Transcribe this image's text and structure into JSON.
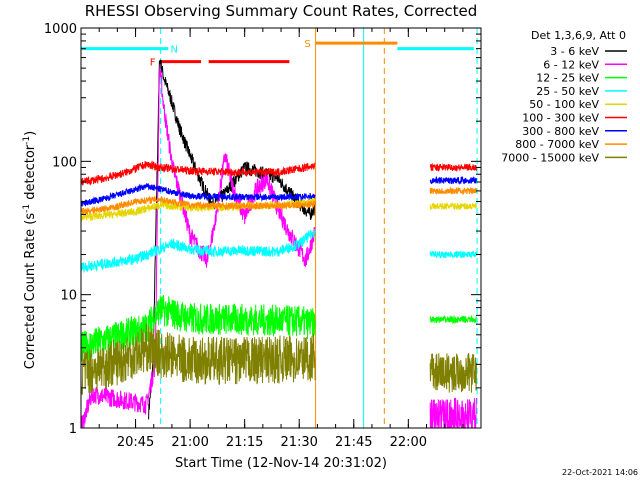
{
  "chart_data": {
    "type": "line",
    "title": "RHESSI Observing Summary Count Rates, Corrected",
    "xlabel": "Start Time (12-Nov-14 20:31:02)",
    "ylabel_main": "Corrected Count Rate (s",
    "ylabel_sup1": "-1",
    "ylabel_mid": " detector",
    "ylabel_sup2": "-1",
    "ylabel_end": ")",
    "yscale": "log",
    "ylim": [
      1,
      1000
    ],
    "xlim_min": [
      20.5,
      22.333
    ],
    "x_ticks": [
      {
        "v": 20.75,
        "label": "20:45"
      },
      {
        "v": 21.0,
        "label": "21:00"
      },
      {
        "v": 21.25,
        "label": "21:15"
      },
      {
        "v": 21.5,
        "label": "21:30"
      },
      {
        "v": 21.75,
        "label": "21:45"
      },
      {
        "v": 22.0,
        "label": "22:00"
      }
    ],
    "y_ticks": [
      {
        "v": 1,
        "label": "1"
      },
      {
        "v": 10,
        "label": "10"
      },
      {
        "v": 100,
        "label": "100"
      },
      {
        "v": 1000,
        "label": "1000"
      }
    ],
    "legend_header": "Det 1,3,6,9, Att 0",
    "legend_position": "right",
    "footer_date": "22-Oct-2021 14:06",
    "grid": false,
    "gaps": [
      [
        21.573,
        22.1
      ]
    ],
    "series": [
      {
        "name": "3 - 6 keV",
        "color": "#000000",
        "noise": 0.05,
        "points": [
          [
            20.81,
            1.3
          ],
          [
            20.83,
            3.0
          ],
          [
            20.86,
            600
          ],
          [
            20.88,
            420
          ],
          [
            20.91,
            300
          ],
          [
            20.95,
            180
          ],
          [
            21.0,
            110
          ],
          [
            21.05,
            70
          ],
          [
            21.1,
            48
          ],
          [
            21.15,
            55
          ],
          [
            21.2,
            70
          ],
          [
            21.25,
            90
          ],
          [
            21.3,
            85
          ],
          [
            21.35,
            80
          ],
          [
            21.4,
            75
          ],
          [
            21.45,
            60
          ],
          [
            21.5,
            48
          ],
          [
            21.55,
            40
          ],
          [
            21.573,
            45
          ]
        ]
      },
      {
        "name": "6 - 12 keV",
        "color": "#ff00ff",
        "noise": 0.07,
        "points": [
          [
            20.5,
            1.0
          ],
          [
            20.55,
            1.8
          ],
          [
            20.8,
            1.5
          ],
          [
            20.84,
            3.0
          ],
          [
            20.86,
            520
          ],
          [
            20.88,
            250
          ],
          [
            20.92,
            90
          ],
          [
            20.97,
            45
          ],
          [
            21.0,
            28
          ],
          [
            21.04,
            22
          ],
          [
            21.08,
            18
          ],
          [
            21.12,
            40
          ],
          [
            21.16,
            110
          ],
          [
            21.2,
            60
          ],
          [
            21.25,
            38
          ],
          [
            21.3,
            60
          ],
          [
            21.35,
            75
          ],
          [
            21.4,
            45
          ],
          [
            21.45,
            30
          ],
          [
            21.5,
            22
          ],
          [
            21.53,
            18
          ],
          [
            21.573,
            30
          ]
        ]
      },
      {
        "name": "12 - 25 keV",
        "color": "#00ff00",
        "noise": 0.12,
        "points": [
          [
            20.5,
            4.0
          ],
          [
            20.6,
            4.5
          ],
          [
            20.7,
            5.0
          ],
          [
            20.8,
            5.6
          ],
          [
            20.86,
            7.8
          ],
          [
            21.0,
            6.6
          ],
          [
            21.25,
            6.5
          ],
          [
            21.5,
            6.3
          ],
          [
            21.573,
            6.0
          ]
        ]
      },
      {
        "name": "25 - 50 keV",
        "color": "#00ffff",
        "noise": 0.04,
        "points": [
          [
            20.5,
            16
          ],
          [
            20.6,
            17
          ],
          [
            20.75,
            18.5
          ],
          [
            20.86,
            22
          ],
          [
            20.92,
            24
          ],
          [
            21.0,
            22
          ],
          [
            21.1,
            21
          ],
          [
            21.25,
            21.5
          ],
          [
            21.4,
            21
          ],
          [
            21.5,
            24
          ],
          [
            21.573,
            30
          ]
        ]
      },
      {
        "name": "50 - 100 keV",
        "color": "#e6d600",
        "noise": 0.03,
        "points": [
          [
            20.5,
            38
          ],
          [
            20.65,
            40
          ],
          [
            20.75,
            42
          ],
          [
            20.86,
            47
          ],
          [
            21.0,
            45
          ],
          [
            21.25,
            46
          ],
          [
            21.5,
            48
          ],
          [
            21.573,
            50
          ]
        ]
      },
      {
        "name": "100 - 300 keV",
        "color": "#ff0000",
        "noise": 0.03,
        "points": [
          [
            20.5,
            70
          ],
          [
            20.6,
            74
          ],
          [
            20.7,
            82
          ],
          [
            20.8,
            95
          ],
          [
            20.86,
            90
          ],
          [
            21.0,
            85
          ],
          [
            21.2,
            83
          ],
          [
            21.4,
            83
          ],
          [
            21.5,
            88
          ],
          [
            21.573,
            93
          ]
        ]
      },
      {
        "name": "300 - 800 keV",
        "color": "#0000ff",
        "noise": 0.025,
        "points": [
          [
            20.5,
            48
          ],
          [
            20.6,
            52
          ],
          [
            20.7,
            58
          ],
          [
            20.8,
            65
          ],
          [
            20.86,
            62
          ],
          [
            21.0,
            55
          ],
          [
            21.25,
            54
          ],
          [
            21.5,
            54
          ],
          [
            21.573,
            55
          ]
        ]
      },
      {
        "name": "800 - 7000 keV",
        "color": "#ff8c00",
        "noise": 0.025,
        "points": [
          [
            20.5,
            42
          ],
          [
            20.65,
            45
          ],
          [
            20.75,
            50
          ],
          [
            20.86,
            52
          ],
          [
            21.0,
            47
          ],
          [
            21.25,
            46
          ],
          [
            21.5,
            47
          ],
          [
            21.573,
            48
          ]
        ]
      },
      {
        "name": "7000 - 15000 keV",
        "color": "#808000",
        "noise": 0.18,
        "points": [
          [
            20.5,
            2.6
          ],
          [
            20.6,
            2.9
          ],
          [
            20.7,
            3.3
          ],
          [
            20.8,
            4.0
          ],
          [
            20.86,
            3.6
          ],
          [
            21.0,
            3.2
          ],
          [
            21.25,
            3.2
          ],
          [
            21.5,
            3.3
          ],
          [
            21.573,
            3.4
          ]
        ]
      }
    ],
    "after_gap": [
      {
        "color": "#ff0000",
        "value": 90
      },
      {
        "color": "#ff8c00",
        "value": 60
      },
      {
        "color": "#0000ff",
        "value": 72
      },
      {
        "color": "#e6d600",
        "value": 46
      },
      {
        "color": "#00ffff",
        "value": 20
      },
      {
        "color": "#00ff00",
        "value": 6.5
      },
      {
        "color": "#808000",
        "value": 2.6
      },
      {
        "color": "#ff00ff",
        "value": 1.2
      }
    ],
    "flags": [
      {
        "label": "N",
        "color": "#00ffff",
        "value": 700,
        "spans": [
          [
            20.5,
            20.9
          ],
          [
            21.95,
            22.3
          ]
        ]
      },
      {
        "label": "F",
        "color": "#ff0000",
        "value": 560,
        "spans": [
          [
            20.865,
            21.05
          ],
          [
            21.085,
            21.455
          ]
        ]
      },
      {
        "label": "S",
        "color": "#ff8c00",
        "value": 770,
        "spans": [
          [
            21.575,
            21.95
          ]
        ]
      }
    ],
    "vlines": [
      {
        "x": 20.5,
        "color": "#00ffff",
        "dash": false
      },
      {
        "x": 20.865,
        "color": "#00ffff",
        "dash": true
      },
      {
        "x": 21.575,
        "color": "#ff8c00",
        "dash": false
      },
      {
        "x": 21.795,
        "color": "#00ffff",
        "dash": false
      },
      {
        "x": 21.89,
        "color": "#ff8c00",
        "dash": true
      },
      {
        "x": 22.315,
        "color": "#00ffff",
        "dash": true
      }
    ]
  }
}
